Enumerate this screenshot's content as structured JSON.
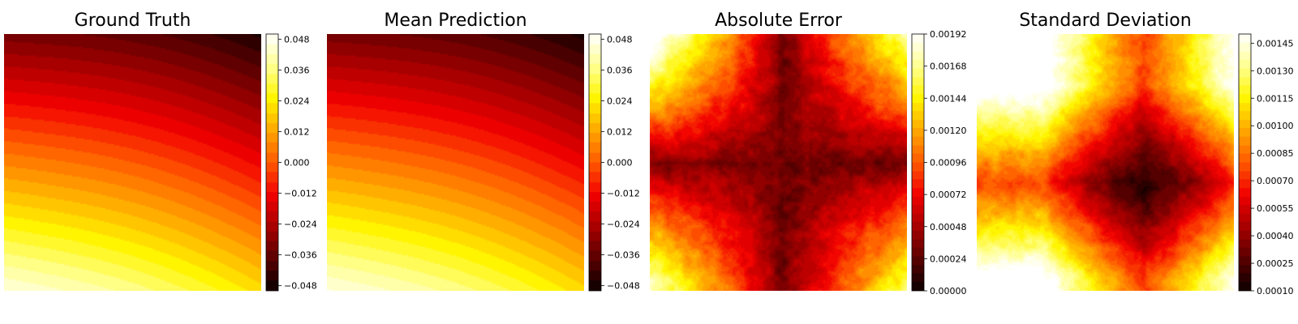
{
  "colors": {
    "colormap": "hot",
    "stops": [
      "#0b0000",
      "#5a0000",
      "#a80000",
      "#f20000",
      "#ff5a00",
      "#ffa800",
      "#fff500",
      "#ffff90",
      "#ffffff"
    ]
  },
  "chart_data": [
    {
      "type": "heatmap",
      "title": "Ground Truth",
      "field": "smooth field decreasing diagonally from lower-left toward upper-right",
      "colorbar": {
        "range": [
          -0.05,
          0.05
        ],
        "levels": 26,
        "ticks": [
          "−0.048",
          "−0.036",
          "−0.024",
          "−0.012",
          "0.000",
          "0.012",
          "0.024",
          "0.036",
          "0.048"
        ],
        "tick_values": [
          -0.048,
          -0.036,
          -0.024,
          -0.012,
          0.0,
          0.012,
          0.024,
          0.036,
          0.048
        ]
      }
    },
    {
      "type": "heatmap",
      "title": "Mean Prediction",
      "field": "nearly identical to ground truth",
      "colorbar": {
        "range": [
          -0.05,
          0.05
        ],
        "levels": 26,
        "ticks": [
          "−0.048",
          "−0.036",
          "−0.024",
          "−0.012",
          "0.000",
          "0.012",
          "0.024",
          "0.036",
          "0.048"
        ],
        "tick_values": [
          -0.048,
          -0.036,
          -0.024,
          -0.012,
          0.0,
          0.012,
          0.024,
          0.036,
          0.048
        ]
      }
    },
    {
      "type": "heatmap",
      "title": "Absolute Error",
      "field": "four bright corner lobes separated by a dark cross-shaped band, with noisy contours",
      "colorbar": {
        "range": [
          0.0,
          0.00192
        ],
        "levels": 30,
        "ticks": [
          "0.00000",
          "0.00024",
          "0.00048",
          "0.00072",
          "0.00096",
          "0.00120",
          "0.00144",
          "0.00168",
          "0.00192"
        ],
        "tick_values": [
          0.0,
          0.00024,
          0.00048,
          0.00072,
          0.00096,
          0.0012,
          0.00144,
          0.00168,
          0.00192
        ]
      }
    },
    {
      "type": "heatmap",
      "title": "Standard Deviation",
      "field": "bright corners, dark cross through center, high in corners",
      "colorbar": {
        "range": [
          0.0001,
          0.0015
        ],
        "levels": 30,
        "ticks": [
          "0.00010",
          "0.00025",
          "0.00040",
          "0.00055",
          "0.00070",
          "0.00085",
          "0.00100",
          "0.00115",
          "0.00130",
          "0.00145"
        ],
        "tick_values": [
          0.0001,
          0.00025,
          0.0004,
          0.00055,
          0.0007,
          0.00085,
          0.001,
          0.00115,
          0.0013,
          0.00145
        ]
      }
    }
  ]
}
